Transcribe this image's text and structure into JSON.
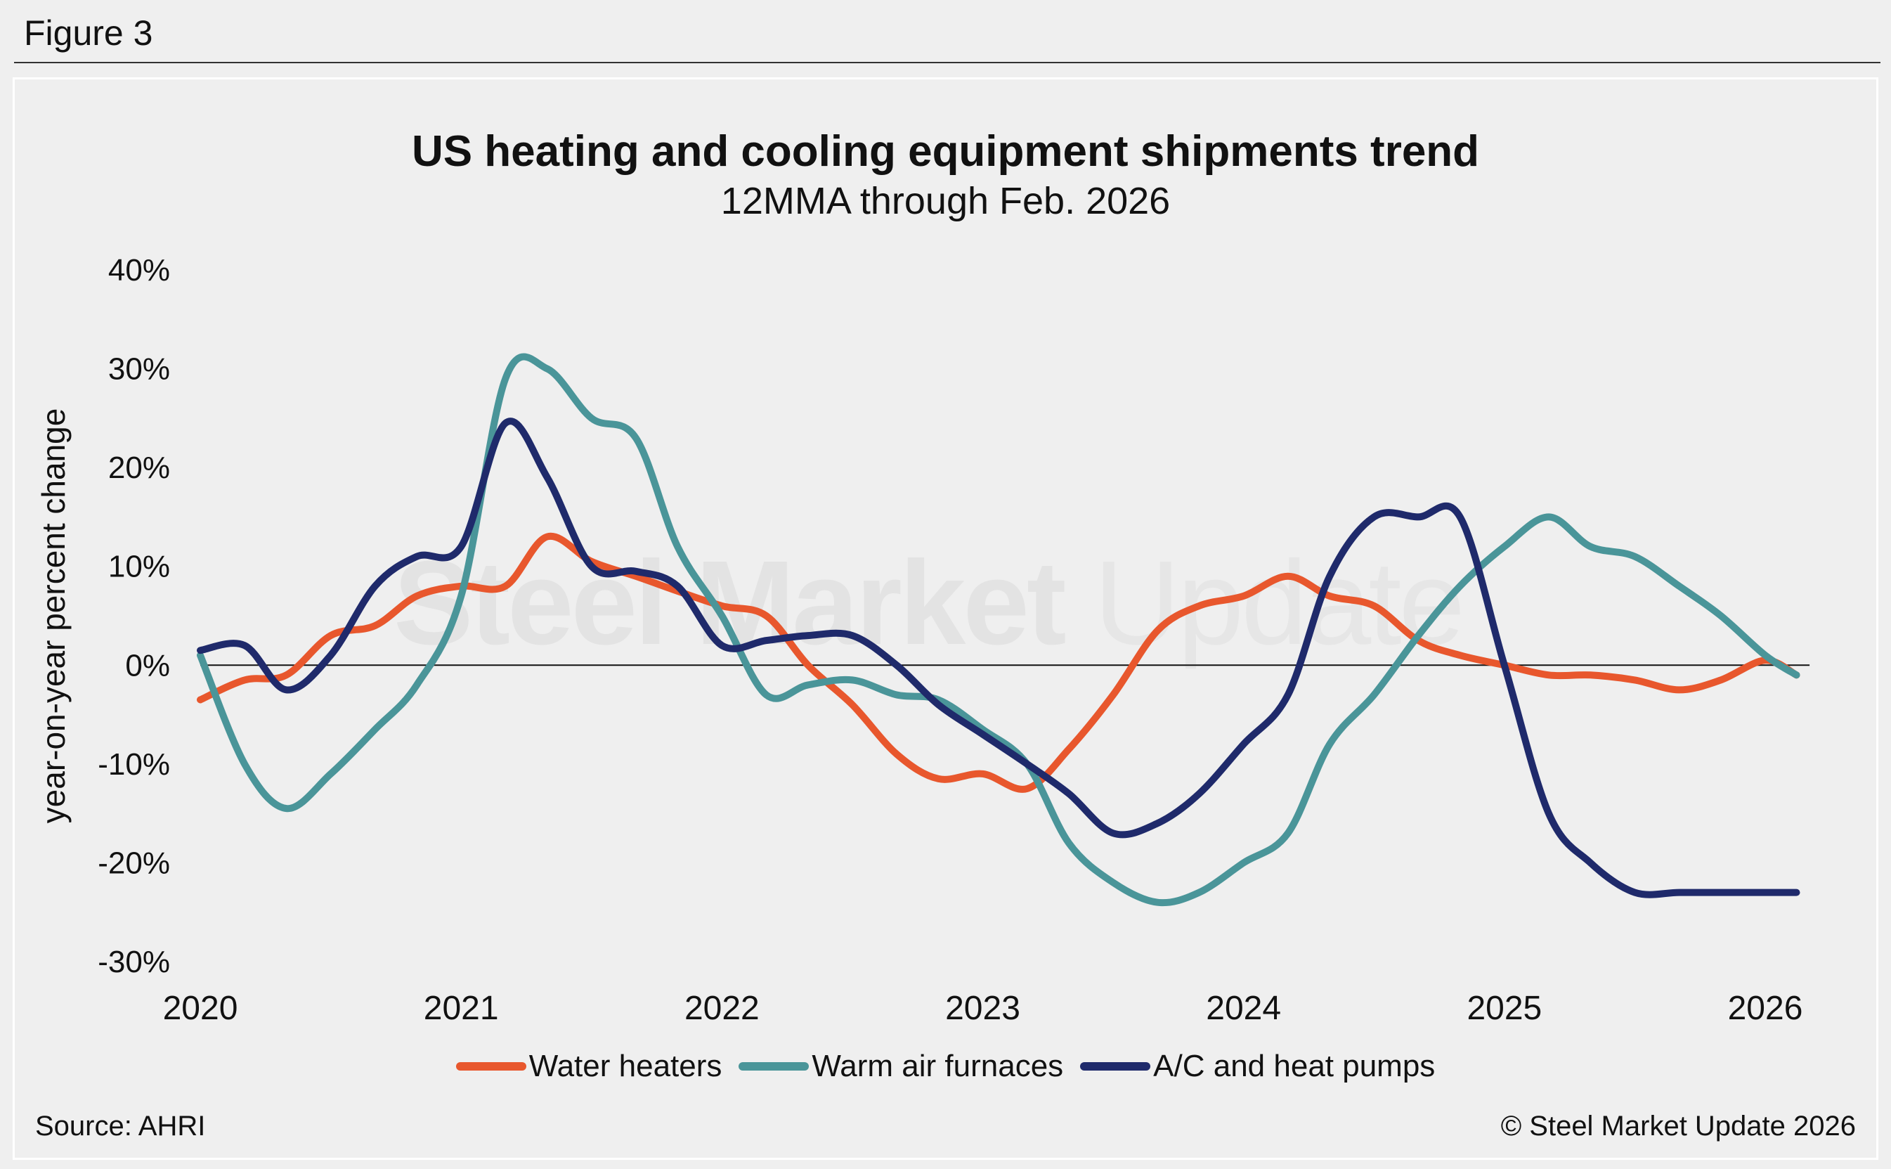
{
  "figure_label": "Figure 3",
  "source": "Source: AHRI",
  "copyright": "© Steel Market Update 2026",
  "watermark": {
    "bold": "Steel Market",
    "light": "Update"
  },
  "colors": {
    "water": "#e8572d",
    "furnace": "#4a9599",
    "ac": "#1f2a6b"
  },
  "chart_data": {
    "type": "line",
    "title": "US heating and cooling equipment shipments trend",
    "subtitle": "12MMA through Feb. 2026",
    "ylabel": "year-on-year percent change",
    "xlabel": "",
    "ylim": [
      -30,
      40
    ],
    "xlim": [
      2020,
      2026.17
    ],
    "y_ticks": [
      40,
      30,
      20,
      10,
      0,
      -10,
      -20,
      -30
    ],
    "y_tick_labels": [
      "40%",
      "30%",
      "20%",
      "10%",
      "0%",
      "-10%",
      "-20%",
      "-30%"
    ],
    "x_ticks": [
      2020,
      2021,
      2022,
      2023,
      2024,
      2025,
      2026
    ],
    "x_tick_labels": [
      "2020",
      "2021",
      "2022",
      "2023",
      "2024",
      "2025",
      "2026"
    ],
    "legend_position": "bottom",
    "series": [
      {
        "name": "Water heaters",
        "color": "#e8572d",
        "x": [
          2020,
          2020.17,
          2020.33,
          2020.5,
          2020.67,
          2020.83,
          2021,
          2021.17,
          2021.33,
          2021.5,
          2021.67,
          2021.83,
          2022,
          2022.17,
          2022.33,
          2022.5,
          2022.67,
          2022.83,
          2023,
          2023.17,
          2023.33,
          2023.5,
          2023.67,
          2023.83,
          2024,
          2024.17,
          2024.33,
          2024.5,
          2024.67,
          2024.83,
          2025,
          2025.17,
          2025.33,
          2025.5,
          2025.67,
          2025.83,
          2026,
          2026.12
        ],
        "values": [
          -3.5,
          -1.5,
          -1,
          3,
          4,
          7,
          8,
          8,
          13,
          10.5,
          9,
          7.5,
          6,
          5,
          0,
          -4,
          -9,
          -11.5,
          -11,
          -12.5,
          -8.5,
          -3,
          3.5,
          6,
          7,
          9,
          7,
          6,
          2.5,
          1,
          0,
          -1,
          -1,
          -1.5,
          -2.5,
          -1.5,
          0.5,
          -1
        ]
      },
      {
        "name": "Warm air furnaces",
        "color": "#4a9599",
        "x": [
          2020,
          2020.17,
          2020.33,
          2020.5,
          2020.67,
          2020.83,
          2021,
          2021.17,
          2021.33,
          2021.5,
          2021.67,
          2021.83,
          2022,
          2022.17,
          2022.33,
          2022.5,
          2022.67,
          2022.83,
          2023,
          2023.17,
          2023.33,
          2023.5,
          2023.67,
          2023.83,
          2024,
          2024.17,
          2024.33,
          2024.5,
          2024.67,
          2024.83,
          2025,
          2025.17,
          2025.33,
          2025.5,
          2025.67,
          2025.83,
          2026,
          2026.12
        ],
        "values": [
          1,
          -10,
          -14.5,
          -11,
          -6.5,
          -2,
          7,
          29,
          30,
          25,
          23,
          12,
          5,
          -3,
          -2,
          -1.5,
          -3,
          -3.5,
          -6.5,
          -10,
          -18,
          -22,
          -24,
          -23,
          -20,
          -17,
          -8,
          -3,
          3,
          8,
          12,
          15,
          12,
          11,
          8,
          5,
          1,
          -1
        ]
      },
      {
        "name": "A/C and heat pumps",
        "color": "#1f2a6b",
        "x": [
          2020,
          2020.17,
          2020.33,
          2020.5,
          2020.67,
          2020.83,
          2021,
          2021.17,
          2021.33,
          2021.5,
          2021.67,
          2021.83,
          2022,
          2022.17,
          2022.33,
          2022.5,
          2022.67,
          2022.83,
          2023,
          2023.17,
          2023.33,
          2023.5,
          2023.67,
          2023.83,
          2024,
          2024.17,
          2024.33,
          2024.5,
          2024.67,
          2024.83,
          2025,
          2025.17,
          2025.33,
          2025.5,
          2025.67,
          2025.83,
          2026,
          2026.12
        ],
        "values": [
          1.5,
          2,
          -2.5,
          1,
          8,
          11,
          12,
          24.5,
          19,
          10,
          9.5,
          8,
          2,
          2.5,
          3,
          3,
          0,
          -4,
          -7,
          -10,
          -13,
          -17,
          -16,
          -13,
          -8,
          -3,
          9,
          15,
          15,
          15,
          0,
          -15,
          -20,
          -23,
          -23,
          -23,
          -23,
          -23
        ]
      }
    ]
  }
}
